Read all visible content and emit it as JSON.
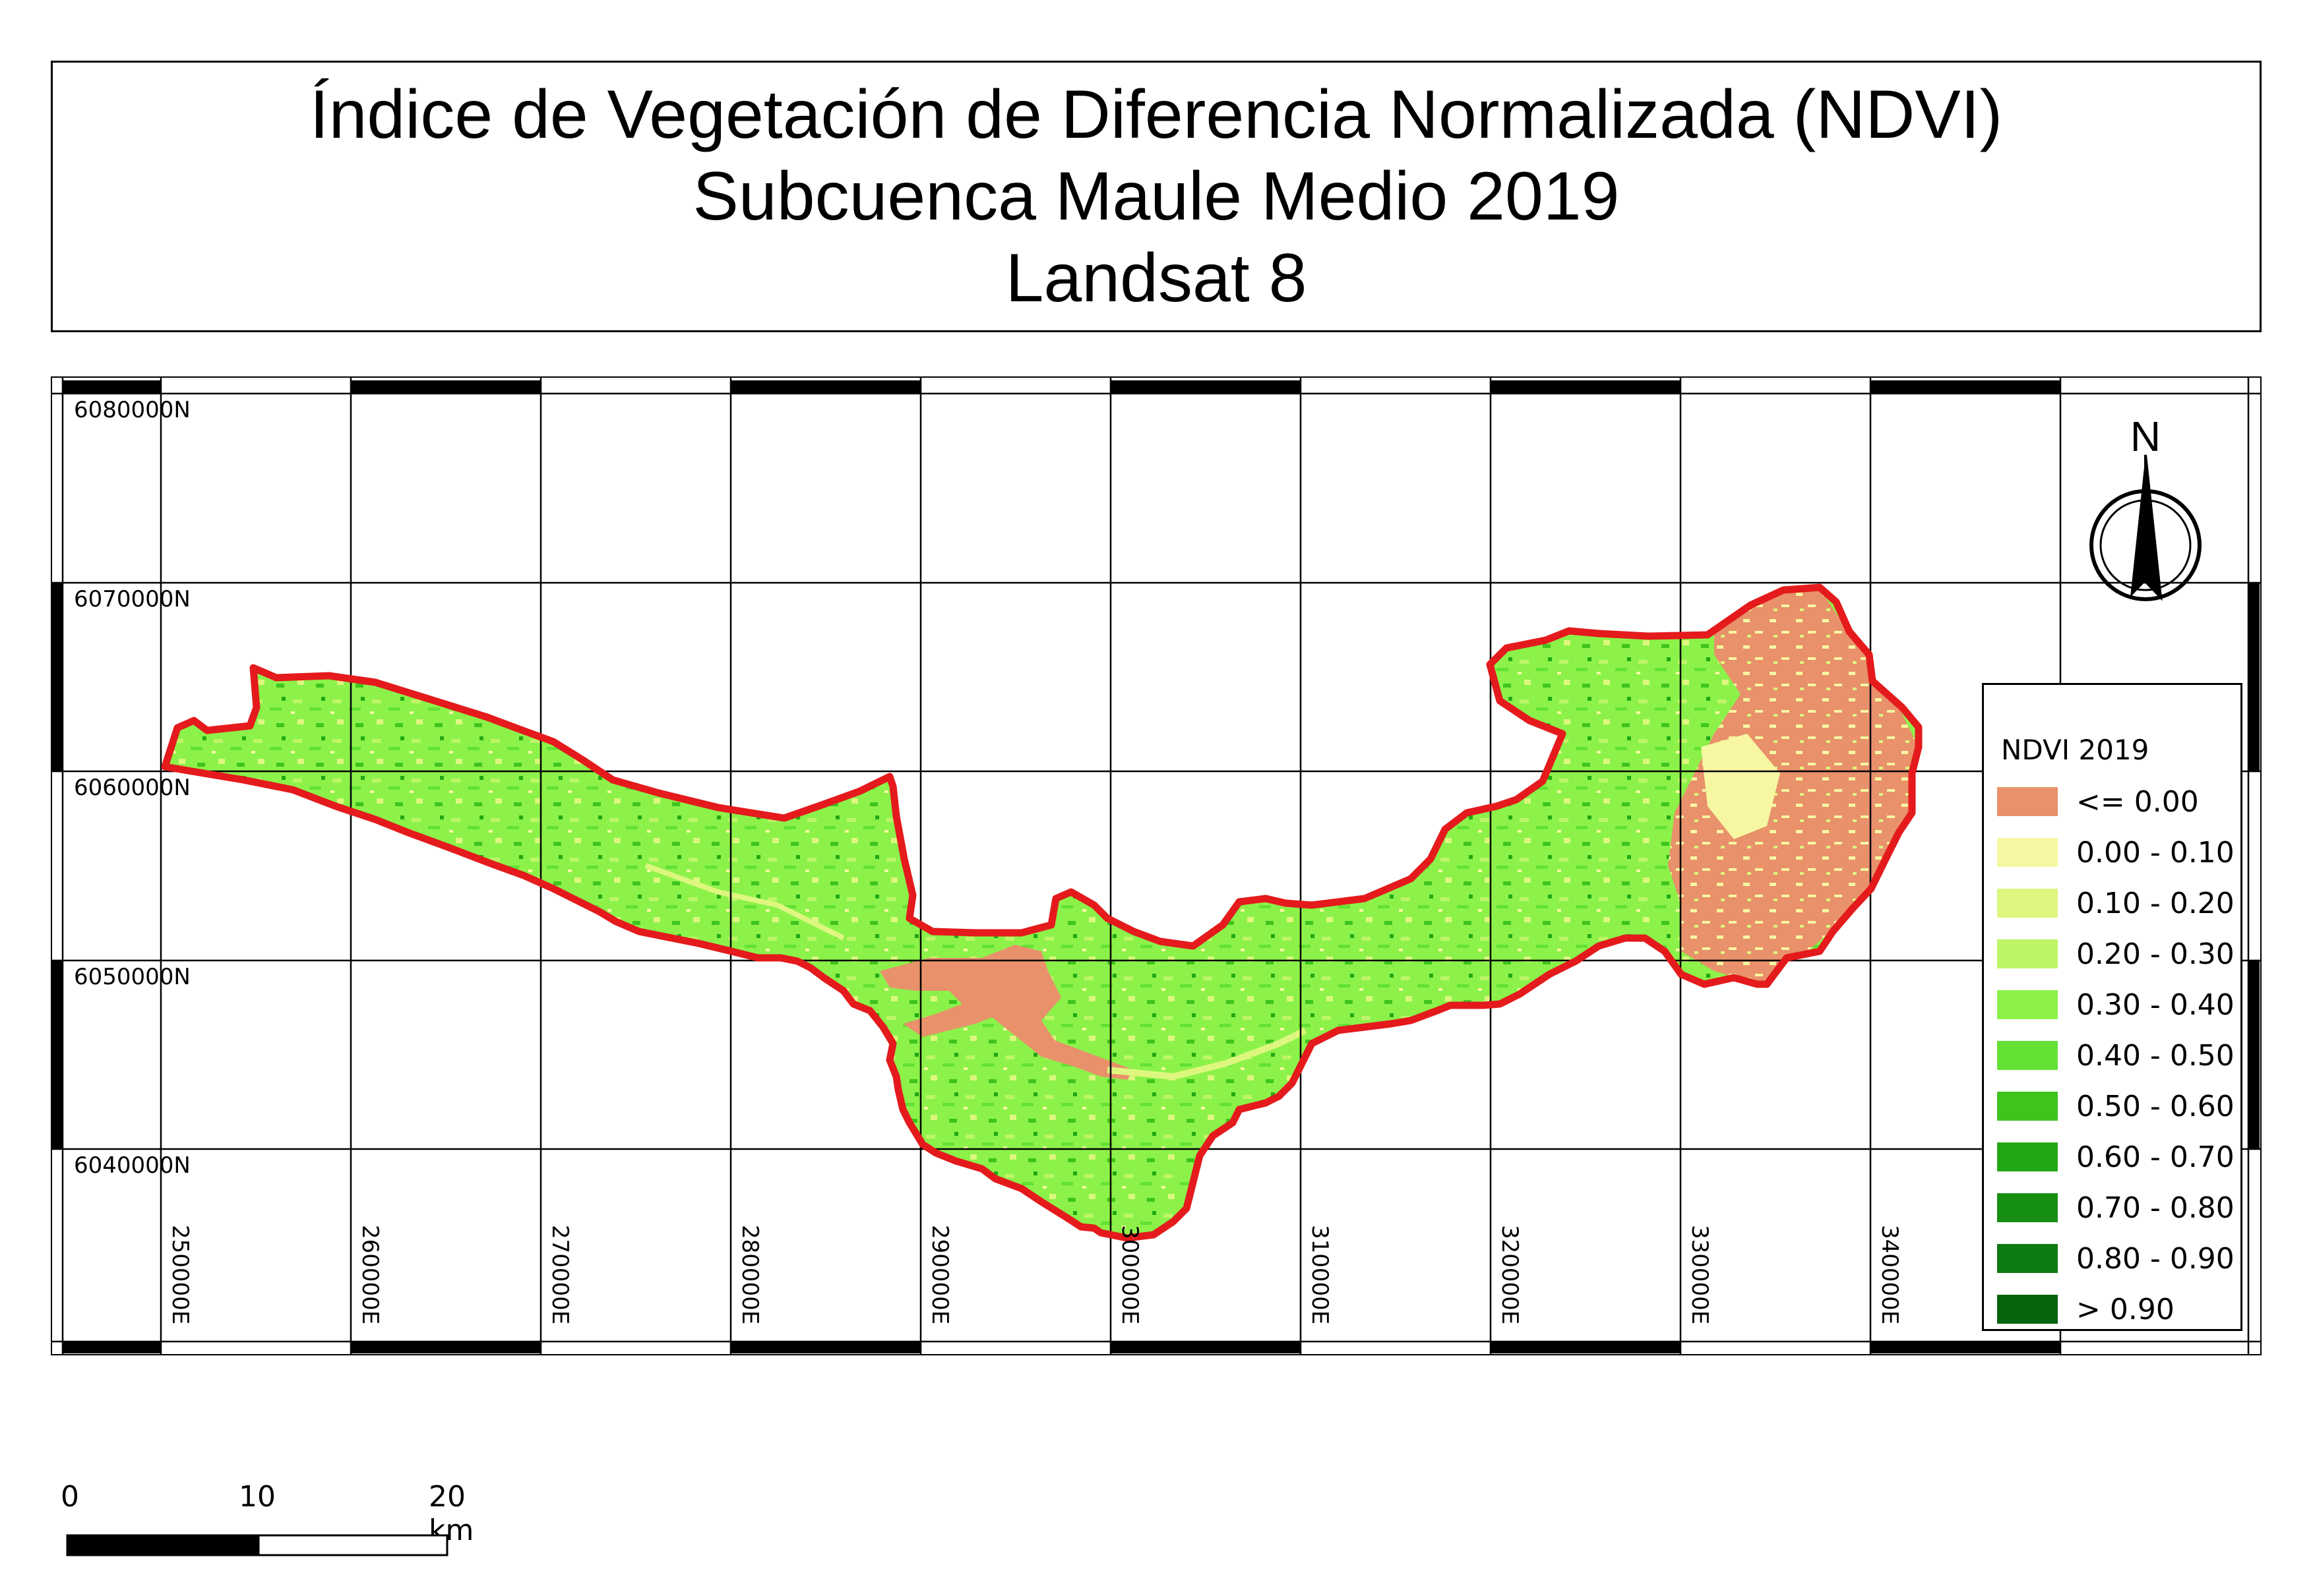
{
  "title": {
    "line1": "Índice de Vegetación de Diferencia Normalizada (NDVI)",
    "line2": "Subcuenca Maule Medio 2019",
    "line3": "Landsat 8"
  },
  "map": {
    "northing_labels": [
      "6080000N",
      "6070000N",
      "6060000N",
      "6050000N",
      "6040000N"
    ],
    "easting_labels": [
      "250000E",
      "260000E",
      "270000E",
      "280000E",
      "290000E",
      "300000E",
      "310000E",
      "320000E",
      "330000E",
      "340000E"
    ],
    "basin_outline_color": "#e41a1c",
    "north_label": "N"
  },
  "legend": {
    "title": "NDVI 2019",
    "items": [
      {
        "label": "<= 0.00",
        "color": "#e8916a"
      },
      {
        "label": "0.00 - 0.10",
        "color": "#f7f7a1"
      },
      {
        "label": "0.10 - 0.20",
        "color": "#ddf77e"
      },
      {
        "label": "0.20 - 0.30",
        "color": "#bdf567"
      },
      {
        "label": "0.30 - 0.40",
        "color": "#8cf24a"
      },
      {
        "label": "0.40 - 0.50",
        "color": "#63e135"
      },
      {
        "label": "0.50 - 0.60",
        "color": "#3fc41e"
      },
      {
        "label": "0.60 - 0.70",
        "color": "#22a815"
      },
      {
        "label": "0.70 - 0.80",
        "color": "#168f13"
      },
      {
        "label": "0.80 - 0.90",
        "color": "#0d7a12"
      },
      {
        "label": "> 0.90",
        "color": "#06640f"
      }
    ]
  },
  "scale_bar": {
    "labels": [
      "0",
      "10",
      "20 km"
    ]
  }
}
